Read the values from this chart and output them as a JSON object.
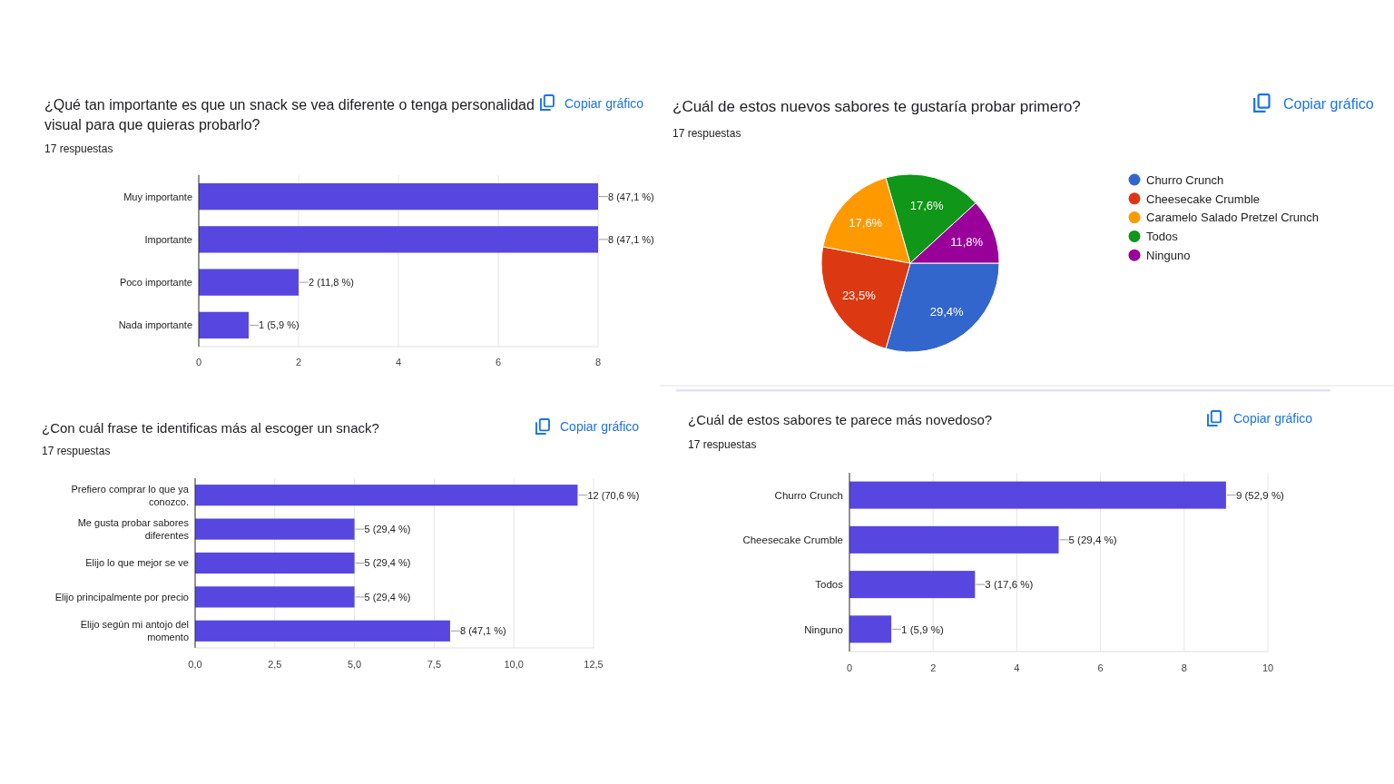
{
  "chart_data": [
    {
      "type": "bar",
      "orientation": "horizontal",
      "title": "¿Qué tan importante es que un snack se vea diferente o tenga personalidad visual para que quieras probarlo?",
      "subtitle": "17 respuestas",
      "annotations": [
        "Copiar gráfico"
      ],
      "categories": [
        "Muy importante",
        "Importante",
        "Poco importante",
        "Nada importante"
      ],
      "values": [
        8,
        8,
        2,
        1
      ],
      "color": "#5746e0",
      "value_labels": [
        "8 (47,1 %)",
        "8 (47,1 %)",
        "2 (11,8 %)",
        "1 (5,9 %)"
      ],
      "xlim": [
        0,
        8
      ],
      "xticks": [
        0,
        2,
        4,
        6,
        8
      ],
      "grid": "x"
    },
    {
      "type": "pie",
      "title": "¿Cuál de estos nuevos sabores te gustaría probar primero?",
      "subtitle": "17 respuestas",
      "annotations": [
        "Copiar gráfico"
      ],
      "categories": [
        "Churro Crunch",
        "Cheesecake Crumble",
        "Caramelo Salado Pretzel Crunch",
        "Todos",
        "Ninguno"
      ],
      "values": [
        29.4,
        23.5,
        17.6,
        17.6,
        11.8
      ],
      "colors": [
        "#3366cc",
        "#dc3912",
        "#ff9900",
        "#109618",
        "#990099"
      ],
      "value_labels": [
        "29,4%",
        "23,5%",
        "17,6%",
        "17,6%",
        "11,8%"
      ],
      "legend": "right"
    },
    {
      "type": "bar",
      "orientation": "horizontal",
      "title": "¿Con cuál frase te identificas más al escoger un snack?",
      "subtitle": "17 respuestas",
      "annotations": [
        "Copiar gráfico"
      ],
      "categories": [
        "Prefiero comprar lo que ya conozco.",
        "Me gusta probar sabores diferentes",
        "Elijo lo que mejor se ve",
        "Elijo principalmente por precio",
        "Elijo según mi antojo del momento"
      ],
      "values": [
        12,
        5,
        5,
        5,
        8
      ],
      "color": "#5746e0",
      "value_labels": [
        "12 (70,6 %)",
        "5 (29,4 %)",
        "5 (29,4 %)",
        "5 (29,4 %)",
        "8 (47,1 %)"
      ],
      "xlim": [
        0,
        12.5
      ],
      "xticks": [
        {
          "value": 0,
          "label": "0,0"
        },
        {
          "value": 2.5,
          "label": "2,5"
        },
        {
          "value": 5,
          "label": "5,0"
        },
        {
          "value": 7.5,
          "label": "7,5"
        },
        {
          "value": 10,
          "label": "10,0"
        },
        {
          "value": 12.5,
          "label": "12,5"
        }
      ],
      "grid": "x"
    },
    {
      "type": "bar",
      "orientation": "horizontal",
      "title": "¿Cuál de estos sabores te parece más novedoso?",
      "subtitle": "17 respuestas",
      "annotations": [
        "Copiar gráfico"
      ],
      "categories": [
        "Churro Crunch",
        "Cheesecake Crumble",
        "Todos",
        "Ninguno"
      ],
      "values": [
        9,
        5,
        3,
        1
      ],
      "color": "#5746e0",
      "value_labels": [
        "9 (52,9 %)",
        "5 (29,4 %)",
        "3 (17,6 %)",
        "1 (5,9 %)"
      ],
      "xlim": [
        0,
        10
      ],
      "xticks": [
        0,
        2,
        4,
        6,
        8,
        10
      ],
      "grid": "x"
    }
  ]
}
